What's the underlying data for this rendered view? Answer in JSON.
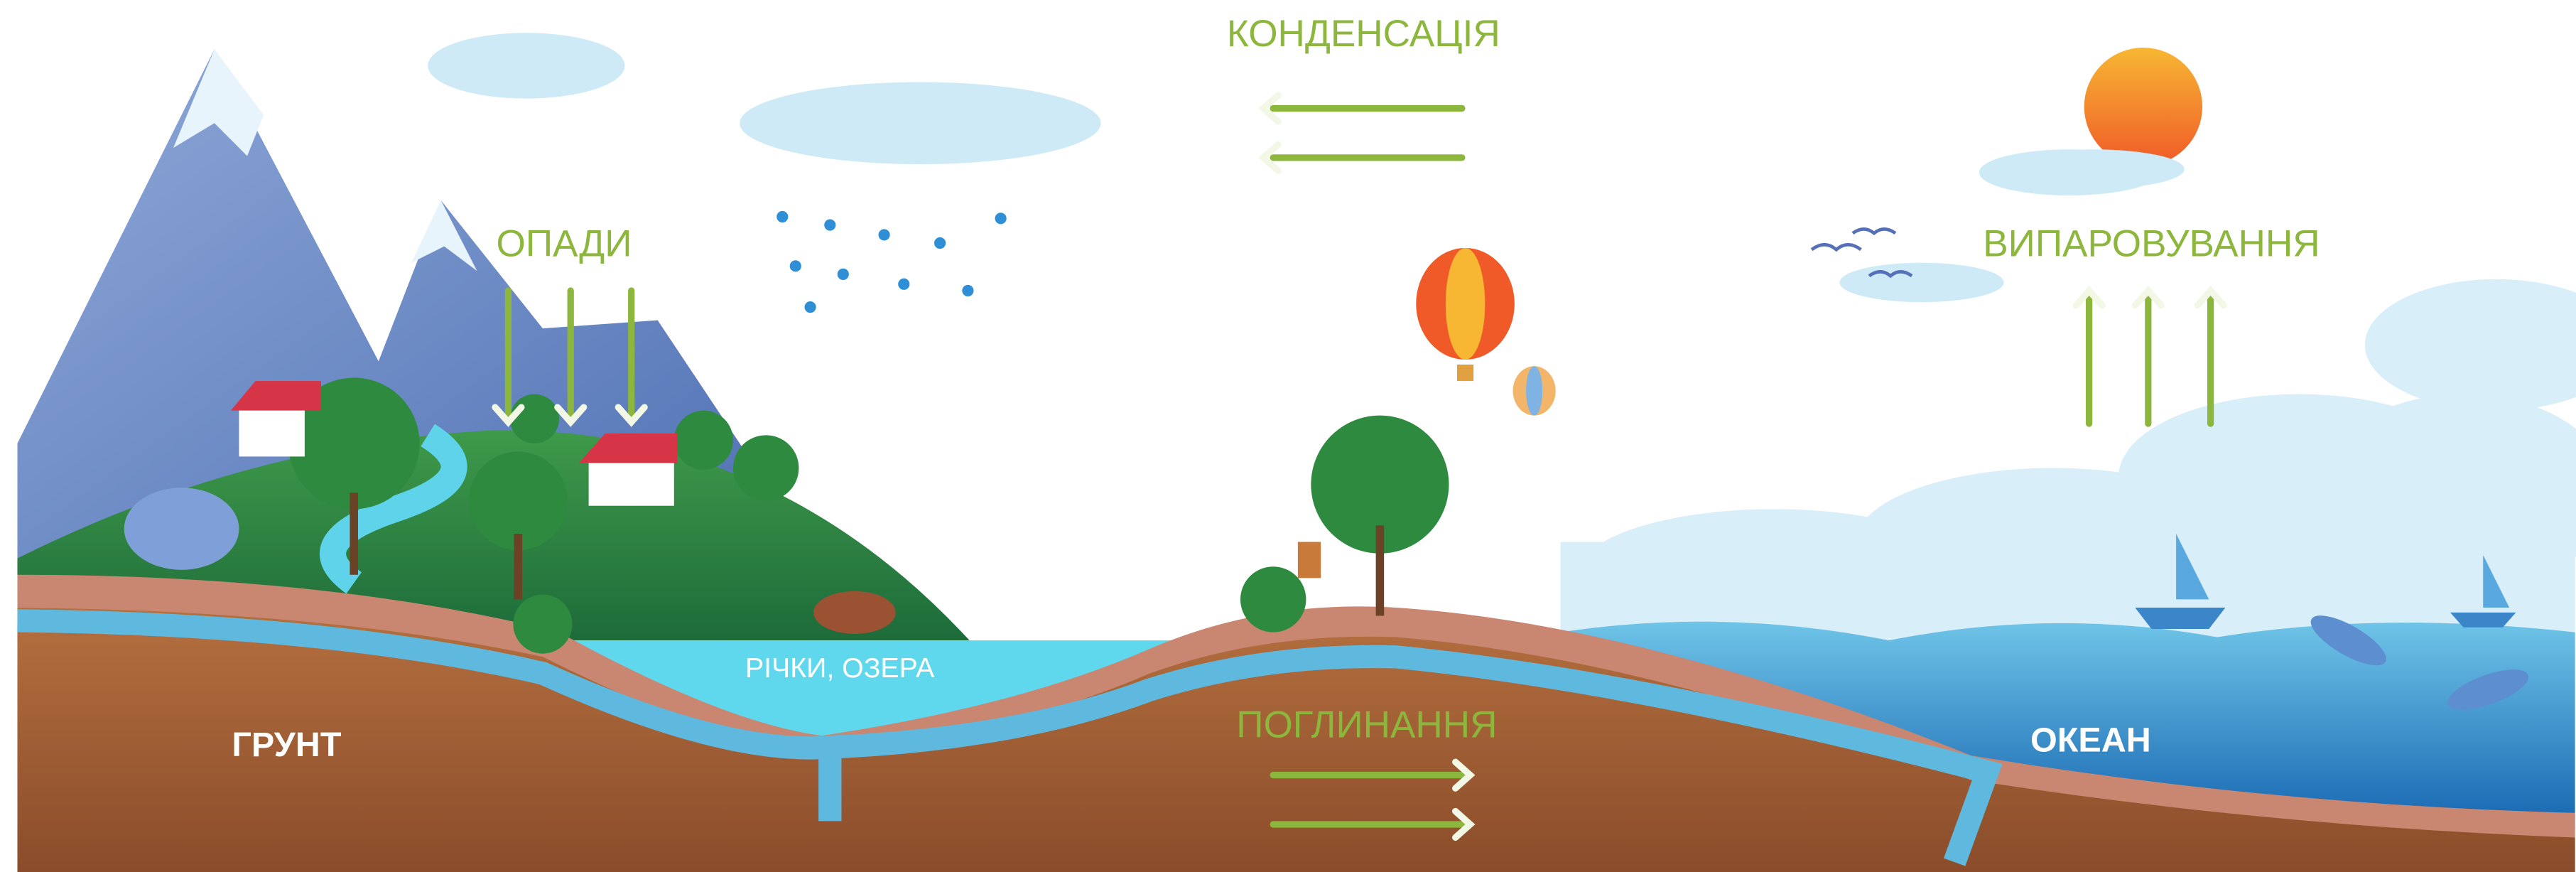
{
  "labels": {
    "condensation": "КОНДЕНСАЦІЯ",
    "precipitation": "ОПАДИ",
    "evaporation": "ВИПАРОВУВАННЯ",
    "rivers_lakes": "РІЧКИ, ОЗЕРА",
    "soil": "ГРУНТ",
    "absorption": "ПОГЛИНАННЯ",
    "ocean": "ОКЕАН"
  }
}
